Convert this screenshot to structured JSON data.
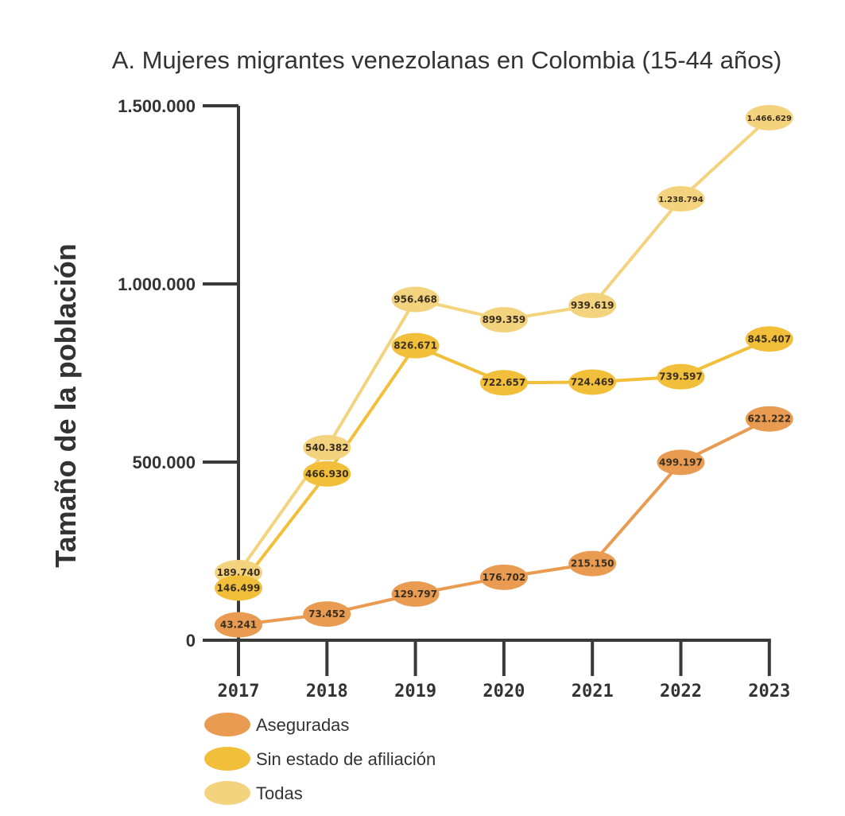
{
  "chart_data": {
    "type": "line",
    "title": "A. Mujeres migrantes venezolanas en Colombia (15-44 años)",
    "xlabel": "",
    "ylabel": "Tamaño de la población",
    "categories": [
      "2017",
      "2018",
      "2019",
      "2020",
      "2021",
      "2022",
      "2023"
    ],
    "ylim": [
      0,
      1500000
    ],
    "yticks": [
      0,
      500000,
      1000000,
      1500000
    ],
    "ytick_labels": [
      "0",
      "500.000",
      "1.000.000",
      "1.500.000"
    ],
    "grid": false,
    "legend_position": "bottom-left",
    "series": [
      {
        "name": "Aseguradas",
        "color": "#E99B52",
        "values": [
          43241,
          73452,
          129797,
          176702,
          215150,
          499197,
          621222
        ],
        "labels": [
          "43.241",
          "73.452",
          "129.797",
          "176.702",
          "215.150",
          "499.197",
          "621.222"
        ]
      },
      {
        "name": "Sin estado de afiliación",
        "color": "#F2BF3A",
        "values": [
          146499,
          466930,
          826671,
          722657,
          724469,
          739597,
          845407
        ],
        "labels": [
          "146.499",
          "466.930",
          "826.671",
          "722.657",
          "724.469",
          "739.597",
          "845.407"
        ]
      },
      {
        "name": "Todas",
        "color": "#F4D37E",
        "values": [
          189740,
          540382,
          956468,
          899359,
          939619,
          1238794,
          1466629
        ],
        "labels": [
          "189.740",
          "540.382",
          "956.468",
          "899.359",
          "939.619",
          "1.238.794",
          "1.466.629"
        ]
      }
    ]
  }
}
